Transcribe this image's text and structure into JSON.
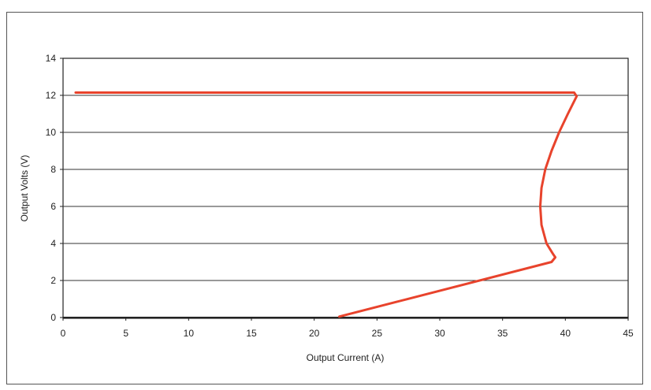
{
  "chart_data": {
    "type": "line",
    "title": "",
    "xlabel": "Output Current (A)",
    "ylabel": "Output Volts (V)",
    "xlim": [
      0,
      45
    ],
    "ylim": [
      0,
      14
    ],
    "xticks": [
      "0",
      "5",
      "10",
      "15",
      "20",
      "25",
      "30",
      "35",
      "40",
      "45"
    ],
    "yticks": [
      "0",
      "2",
      "4",
      "6",
      "8",
      "10",
      "12",
      "14"
    ],
    "grid": "horizontal",
    "legend": "none",
    "series": [
      {
        "color": "#e8432c",
        "points": [
          [
            1.0,
            12.15
          ],
          [
            40.7,
            12.15
          ],
          [
            40.9,
            11.95
          ],
          [
            40.2,
            11.0
          ],
          [
            39.5,
            10.0
          ],
          [
            38.9,
            9.0
          ],
          [
            38.4,
            8.0
          ],
          [
            38.1,
            7.0
          ],
          [
            38.0,
            6.0
          ],
          [
            38.1,
            5.0
          ],
          [
            38.5,
            4.0
          ],
          [
            39.0,
            3.45
          ],
          [
            39.2,
            3.25
          ],
          [
            38.9,
            3.0
          ],
          [
            22.0,
            0.05
          ]
        ]
      }
    ]
  }
}
